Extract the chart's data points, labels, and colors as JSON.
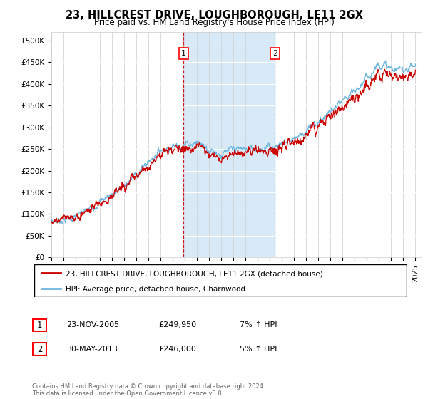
{
  "title": "23, HILLCREST DRIVE, LOUGHBOROUGH, LE11 2GX",
  "subtitle": "Price paid vs. HM Land Registry's House Price Index (HPI)",
  "ylabel_ticks": [
    "£0",
    "£50K",
    "£100K",
    "£150K",
    "£200K",
    "£250K",
    "£300K",
    "£350K",
    "£400K",
    "£450K",
    "£500K"
  ],
  "ytick_values": [
    0,
    50000,
    100000,
    150000,
    200000,
    250000,
    300000,
    350000,
    400000,
    450000,
    500000
  ],
  "xlim_start": 1995.0,
  "xlim_end": 2025.5,
  "ylim": [
    0,
    520000
  ],
  "hpi_color": "#6eb5e0",
  "price_color": "#cc0000",
  "sale1_date": 2005.9,
  "sale1_price": 249950,
  "sale2_date": 2013.42,
  "sale2_price": 246000,
  "vline1_color": "#cc0000",
  "vline2_color": "#6699bb",
  "shaded_region_color": "#d8eaf8",
  "legend_price_label": "23, HILLCREST DRIVE, LOUGHBOROUGH, LE11 2GX (detached house)",
  "legend_hpi_label": "HPI: Average price, detached house, Charnwood",
  "annotation1_label": "1",
  "annotation1_date": "23-NOV-2005",
  "annotation1_price": "£249,950",
  "annotation1_hpi": "7% ↑ HPI",
  "annotation2_label": "2",
  "annotation2_date": "30-MAY-2013",
  "annotation2_price": "£246,000",
  "annotation2_hpi": "5% ↑ HPI",
  "footer": "Contains HM Land Registry data © Crown copyright and database right 2024.\nThis data is licensed under the Open Government Licence v3.0.",
  "background_color": "#ffffff",
  "plot_bg_color": "#ffffff",
  "grid_color": "#cccccc"
}
